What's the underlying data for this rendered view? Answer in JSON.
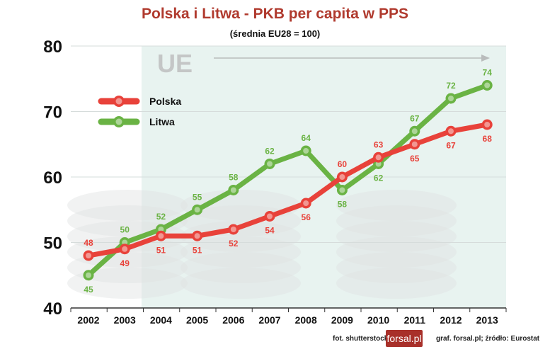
{
  "chart_data": {
    "type": "line",
    "title": "Polska i Litwa - PKB per capita w PPS",
    "subtitle": "(średnia EU28 = 100)",
    "x": [
      "2002",
      "2003",
      "2004",
      "2005",
      "2006",
      "2007",
      "2008",
      "2009",
      "2010",
      "2011",
      "2012",
      "2013"
    ],
    "series": [
      {
        "name": "Polska",
        "color": "#e8423a",
        "values": [
          48,
          49,
          51,
          51,
          52,
          54,
          56,
          60,
          63,
          65,
          67,
          68
        ]
      },
      {
        "name": "Litwa",
        "color": "#6ab344",
        "values": [
          45,
          50,
          52,
          55,
          58,
          62,
          64,
          58,
          62,
          67,
          72,
          74
        ]
      }
    ],
    "ylim": [
      40,
      80
    ],
    "yticks": [
      "40",
      "50",
      "60",
      "70",
      "80"
    ],
    "grid": true,
    "legend": "top-left",
    "annotation": "UE",
    "xlabel": "",
    "ylabel": ""
  },
  "footer": {
    "photo": "fot. shutterstock",
    "logo": "forsal.pl",
    "source": "graf. forsal.pl;  źródło: Eurostat"
  }
}
